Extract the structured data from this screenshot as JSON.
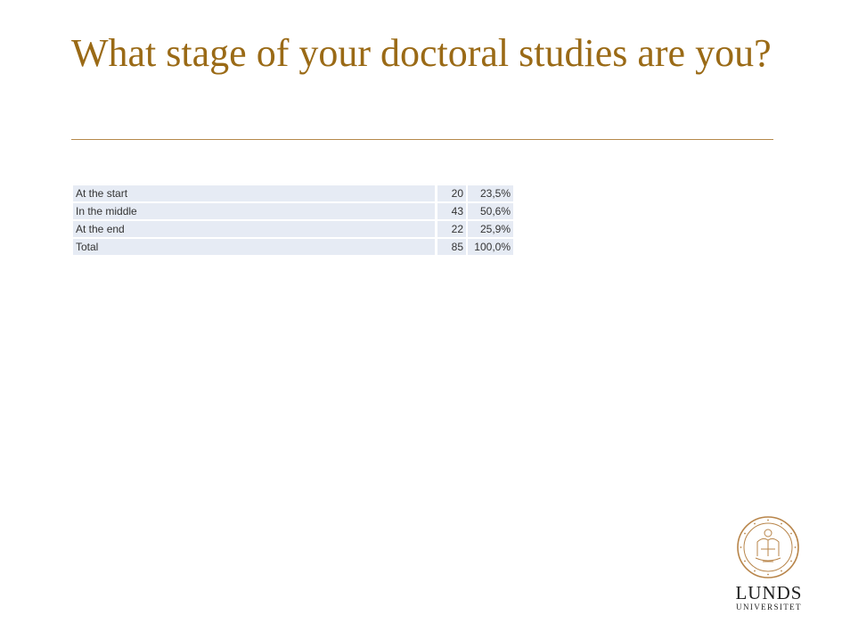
{
  "title": "What stage of your doctoral studies are you?",
  "table": {
    "rows": [
      {
        "label": "At the start",
        "count": "20",
        "percent": "23,5%"
      },
      {
        "label": "In the middle",
        "count": "43",
        "percent": "50,6%"
      },
      {
        "label": "At the end",
        "count": "22",
        "percent": "25,9%"
      },
      {
        "label": "Total",
        "count": "85",
        "percent": "100,0%"
      }
    ]
  },
  "logo": {
    "name": "LUNDS",
    "subname": "UNIVERSITET",
    "seal_icon": "university-seal-icon"
  },
  "colors": {
    "title": "#9a6a16",
    "rule": "#b5894a",
    "table_fill": "#e6ebf4",
    "logo_seal": "#b8854a"
  }
}
